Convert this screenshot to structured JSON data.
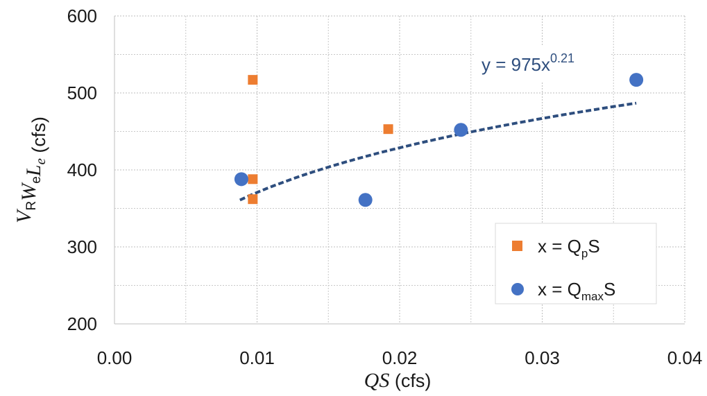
{
  "chart_data": {
    "type": "scatter",
    "title": "",
    "x_axis": {
      "label_italic": "QS",
      "label_unit": " (cfs)",
      "range": [
        0,
        0.04
      ],
      "ticks": [
        0.0,
        0.01,
        0.02,
        0.03,
        0.04
      ],
      "tick_labels": [
        "0.00",
        "0.01",
        "0.02",
        "0.03",
        "0.04"
      ]
    },
    "y_axis": {
      "label_parts": [
        {
          "text": "V",
          "style": "italic"
        },
        {
          "text": "R",
          "style": "sub"
        },
        {
          "text": "W",
          "style": "italic"
        },
        {
          "text": "e",
          "style": "sub"
        },
        {
          "text": "L",
          "style": "italic"
        },
        {
          "text": "e",
          "style": "italic-sub"
        },
        {
          "text": " (cfs)",
          "style": "normal"
        }
      ],
      "range": [
        200,
        600
      ],
      "ticks": [
        200,
        300,
        400,
        500,
        600
      ],
      "tick_labels": [
        "200",
        "300",
        "400",
        "500",
        "600"
      ]
    },
    "grid": true,
    "grid_style": "dashed",
    "legend_position": "bottom-right",
    "series": [
      {
        "name": "x = QpS",
        "legend": {
          "prefix": "x = Q",
          "sub": "p",
          "suffix": "S"
        },
        "marker": "square",
        "color": "#ED7D31",
        "points": [
          [
            0.0097,
            517
          ],
          [
            0.0097,
            388
          ],
          [
            0.0097,
            362
          ],
          [
            0.0192,
            453
          ]
        ]
      },
      {
        "name": "x = QmaxS",
        "legend": {
          "prefix": "x = Q",
          "sub": "max",
          "suffix": "S"
        },
        "marker": "circle",
        "color": "#4472C4",
        "points": [
          [
            0.0089,
            388
          ],
          [
            0.0176,
            361
          ],
          [
            0.0243,
            452
          ],
          [
            0.0366,
            517
          ]
        ]
      }
    ],
    "trendline": {
      "coefficient": 975,
      "exponent": 0.21,
      "x_range": [
        0.0088,
        0.0366
      ],
      "color": "#2E4E7E",
      "label": {
        "base": "y = 975x",
        "sup": "0.21"
      }
    }
  }
}
